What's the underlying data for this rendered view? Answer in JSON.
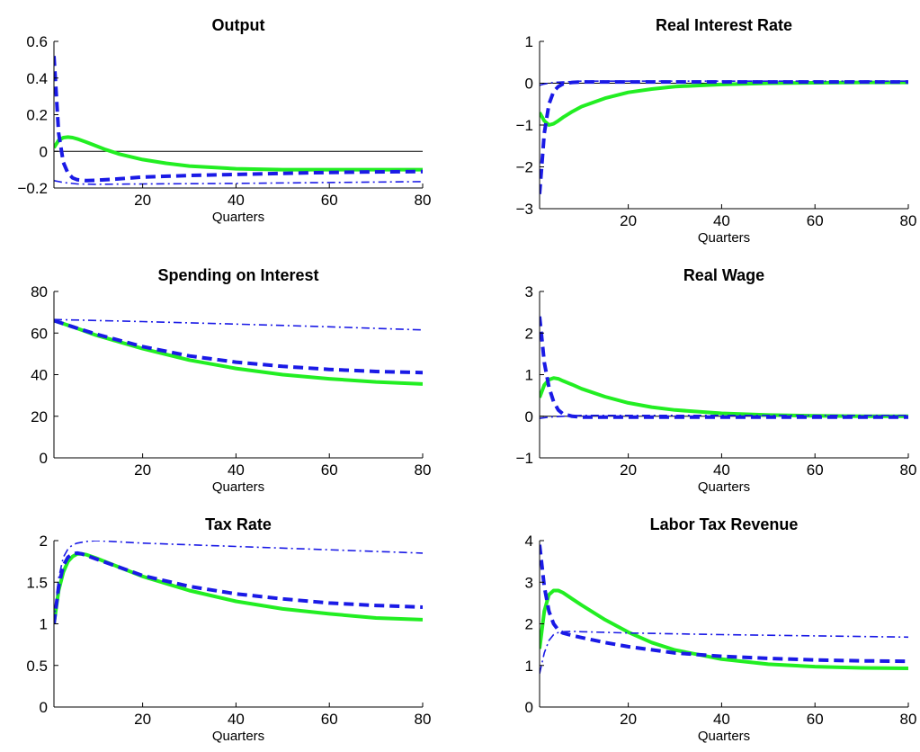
{
  "chart_data": [
    {
      "type": "line",
      "title": "Output",
      "xlabel": "Quarters",
      "ylabel": "",
      "xlim": [
        1,
        80
      ],
      "ylim": [
        -0.2,
        0.6
      ],
      "xticks": [
        20,
        40,
        60,
        80
      ],
      "xtick_labels": [
        "20",
        "40",
        "60",
        "80"
      ],
      "yticks": [
        -0.2,
        0,
        0.2,
        0.4,
        0.6
      ],
      "ytick_labels": [
        "−0.2",
        "0",
        "0.2",
        "0.4",
        "0.6"
      ],
      "zero_line": true,
      "series": [
        {
          "style": "solid",
          "color": "#22ee22",
          "x": [
            1,
            2,
            3,
            4,
            5,
            6,
            8,
            10,
            12,
            15,
            20,
            25,
            30,
            40,
            50,
            60,
            70,
            80
          ],
          "y": [
            0.02,
            0.06,
            0.075,
            0.078,
            0.075,
            0.068,
            0.05,
            0.03,
            0.01,
            -0.015,
            -0.045,
            -0.065,
            -0.08,
            -0.095,
            -0.1,
            -0.1,
            -0.1,
            -0.1
          ]
        },
        {
          "style": "dashed",
          "color": "#1a1ae6",
          "x": [
            1,
            2,
            3,
            4,
            5,
            6,
            8,
            10,
            15,
            20,
            30,
            40,
            50,
            60,
            70,
            80
          ],
          "y": [
            0.52,
            0.1,
            -0.06,
            -0.12,
            -0.145,
            -0.155,
            -0.16,
            -0.158,
            -0.15,
            -0.14,
            -0.132,
            -0.126,
            -0.12,
            -0.115,
            -0.112,
            -0.11
          ]
        },
        {
          "style": "dashdot",
          "color": "#1a1ae6",
          "x": [
            1,
            3,
            6,
            10,
            20,
            40,
            60,
            80
          ],
          "y": [
            -0.16,
            -0.17,
            -0.178,
            -0.18,
            -0.178,
            -0.175,
            -0.17,
            -0.165
          ]
        }
      ]
    },
    {
      "type": "line",
      "title": "Real Interest Rate",
      "xlabel": "Quarters",
      "ylabel": "",
      "xlim": [
        1,
        80
      ],
      "ylim": [
        -3,
        1
      ],
      "xticks": [
        20,
        40,
        60,
        80
      ],
      "xtick_labels": [
        "20",
        "40",
        "60",
        "80"
      ],
      "yticks": [
        -3,
        -2,
        -1,
        0,
        1
      ],
      "ytick_labels": [
        "−3",
        "−2",
        "−1",
        "0",
        "1"
      ],
      "zero_line": true,
      "series": [
        {
          "style": "solid",
          "color": "#22ee22",
          "x": [
            1,
            2,
            3,
            4,
            5,
            6,
            8,
            10,
            15,
            20,
            25,
            30,
            40,
            50,
            60,
            70,
            80
          ],
          "y": [
            -0.7,
            -0.9,
            -1.0,
            -0.97,
            -0.9,
            -0.82,
            -0.68,
            -0.56,
            -0.36,
            -0.22,
            -0.14,
            -0.08,
            -0.03,
            0,
            0.01,
            0.02,
            0.02
          ]
        },
        {
          "style": "dashed",
          "color": "#1a1ae6",
          "x": [
            1,
            2,
            3,
            4,
            5,
            6,
            8,
            10,
            15,
            20,
            40,
            60,
            80
          ],
          "y": [
            -2.65,
            -1.2,
            -0.5,
            -0.2,
            -0.08,
            -0.02,
            0.02,
            0.03,
            0.03,
            0.03,
            0.03,
            0.03,
            0.03
          ]
        },
        {
          "style": "dashdot",
          "color": "#1a1ae6",
          "x": [
            1,
            2,
            3,
            4,
            6,
            8,
            10,
            20,
            40,
            60,
            80
          ],
          "y": [
            -0.05,
            -0.02,
            0,
            0.02,
            0.03,
            0.04,
            0.05,
            0.05,
            0.05,
            0.05,
            0.05
          ]
        }
      ]
    },
    {
      "type": "line",
      "title": "Spending on Interest",
      "xlabel": "Quarters",
      "ylabel": "",
      "xlim": [
        1,
        80
      ],
      "ylim": [
        0,
        80
      ],
      "xticks": [
        20,
        40,
        60,
        80
      ],
      "xtick_labels": [
        "20",
        "40",
        "60",
        "80"
      ],
      "yticks": [
        0,
        20,
        40,
        60,
        80
      ],
      "ytick_labels": [
        "0",
        "20",
        "40",
        "60",
        "80"
      ],
      "zero_line": false,
      "series": [
        {
          "style": "solid",
          "color": "#22ee22",
          "x": [
            1,
            5,
            10,
            20,
            30,
            40,
            50,
            60,
            70,
            80
          ],
          "y": [
            66,
            63,
            59,
            52.5,
            47,
            43,
            40,
            38,
            36.5,
            35.5
          ]
        },
        {
          "style": "dashed",
          "color": "#1a1ae6",
          "x": [
            1,
            5,
            10,
            20,
            30,
            40,
            50,
            60,
            70,
            80
          ],
          "y": [
            66,
            63,
            59.5,
            53.5,
            49,
            46,
            44,
            42.5,
            41.5,
            41
          ]
        },
        {
          "style": "dashdot",
          "color": "#1a1ae6",
          "x": [
            1,
            20,
            40,
            60,
            80
          ],
          "y": [
            66.5,
            65.5,
            64.3,
            63,
            61.5
          ]
        }
      ]
    },
    {
      "type": "line",
      "title": "Real Wage",
      "xlabel": "Quarters",
      "ylabel": "",
      "xlim": [
        1,
        80
      ],
      "ylim": [
        -1,
        3
      ],
      "xticks": [
        20,
        40,
        60,
        80
      ],
      "xtick_labels": [
        "20",
        "40",
        "60",
        "80"
      ],
      "yticks": [
        -1,
        0,
        1,
        2,
        3
      ],
      "ytick_labels": [
        "−1",
        "0",
        "1",
        "2",
        "3"
      ],
      "zero_line": true,
      "series": [
        {
          "style": "solid",
          "color": "#22ee22",
          "x": [
            1,
            2,
            3,
            4,
            5,
            6,
            8,
            10,
            15,
            20,
            25,
            30,
            40,
            50,
            60,
            70,
            80
          ],
          "y": [
            0.45,
            0.75,
            0.88,
            0.92,
            0.9,
            0.85,
            0.76,
            0.66,
            0.47,
            0.32,
            0.22,
            0.15,
            0.07,
            0.03,
            0.01,
            0,
            0
          ]
        },
        {
          "style": "dashed",
          "color": "#1a1ae6",
          "x": [
            1,
            2,
            3,
            4,
            5,
            6,
            8,
            10,
            15,
            20,
            40,
            60,
            80
          ],
          "y": [
            2.4,
            1.3,
            0.7,
            0.35,
            0.15,
            0.06,
            0,
            -0.02,
            -0.02,
            -0.02,
            -0.02,
            -0.02,
            -0.02
          ]
        },
        {
          "style": "dashdot",
          "color": "#1a1ae6",
          "x": [
            1,
            3,
            6,
            10,
            20,
            40,
            60,
            80
          ],
          "y": [
            -0.05,
            -0.02,
            0,
            0.02,
            0.02,
            0.02,
            0.02,
            0.02
          ]
        }
      ]
    },
    {
      "type": "line",
      "title": "Tax Rate",
      "xlabel": "Quarters",
      "ylabel": "",
      "xlim": [
        1,
        80
      ],
      "ylim": [
        0,
        2
      ],
      "xticks": [
        20,
        40,
        60,
        80
      ],
      "xtick_labels": [
        "20",
        "40",
        "60",
        "80"
      ],
      "yticks": [
        0,
        0.5,
        1,
        1.5,
        2
      ],
      "ytick_labels": [
        "0",
        "0.5",
        "1",
        "1.5",
        "2"
      ],
      "zero_line": false,
      "series": [
        {
          "style": "solid",
          "color": "#22ee22",
          "x": [
            1,
            2,
            3,
            4,
            5,
            6,
            7,
            8,
            10,
            15,
            20,
            30,
            40,
            50,
            60,
            70,
            80
          ],
          "y": [
            1.0,
            1.4,
            1.62,
            1.75,
            1.81,
            1.84,
            1.84,
            1.83,
            1.79,
            1.68,
            1.57,
            1.4,
            1.27,
            1.18,
            1.12,
            1.07,
            1.05
          ]
        },
        {
          "style": "dashed",
          "color": "#1a1ae6",
          "x": [
            1,
            2,
            3,
            4,
            5,
            6,
            7,
            8,
            10,
            15,
            20,
            30,
            40,
            50,
            60,
            70,
            80
          ],
          "y": [
            1.0,
            1.45,
            1.7,
            1.8,
            1.84,
            1.85,
            1.84,
            1.82,
            1.78,
            1.68,
            1.58,
            1.45,
            1.36,
            1.3,
            1.25,
            1.22,
            1.2
          ]
        },
        {
          "style": "dashdot",
          "color": "#1a1ae6",
          "x": [
            1,
            2,
            3,
            4,
            5,
            6,
            8,
            10,
            20,
            40,
            60,
            80
          ],
          "y": [
            1.0,
            1.55,
            1.8,
            1.9,
            1.95,
            1.97,
            1.99,
            2.0,
            1.97,
            1.93,
            1.89,
            1.85
          ]
        }
      ]
    },
    {
      "type": "line",
      "title": "Labor Tax Revenue",
      "xlabel": "Quarters",
      "ylabel": "",
      "xlim": [
        1,
        80
      ],
      "ylim": [
        0,
        4
      ],
      "xticks": [
        20,
        40,
        60,
        80
      ],
      "xtick_labels": [
        "20",
        "40",
        "60",
        "80"
      ],
      "yticks": [
        0,
        1,
        2,
        3,
        4
      ],
      "ytick_labels": [
        "0",
        "1",
        "2",
        "3",
        "4"
      ],
      "zero_line": false,
      "series": [
        {
          "style": "solid",
          "color": "#22ee22",
          "x": [
            1,
            2,
            3,
            4,
            5,
            6,
            8,
            10,
            15,
            20,
            25,
            30,
            40,
            50,
            60,
            70,
            80
          ],
          "y": [
            1.4,
            2.3,
            2.7,
            2.8,
            2.8,
            2.75,
            2.6,
            2.45,
            2.1,
            1.8,
            1.55,
            1.37,
            1.15,
            1.03,
            0.97,
            0.94,
            0.93
          ]
        },
        {
          "style": "dashed",
          "color": "#1a1ae6",
          "x": [
            1,
            2,
            3,
            4,
            5,
            6,
            8,
            10,
            15,
            20,
            30,
            40,
            50,
            60,
            70,
            80
          ],
          "y": [
            3.9,
            2.9,
            2.3,
            2.0,
            1.85,
            1.78,
            1.72,
            1.67,
            1.55,
            1.45,
            1.3,
            1.22,
            1.17,
            1.13,
            1.11,
            1.1
          ]
        },
        {
          "style": "dashdot",
          "color": "#1a1ae6",
          "x": [
            1,
            2,
            3,
            4,
            5,
            6,
            8,
            10,
            20,
            40,
            60,
            80
          ],
          "y": [
            0.8,
            1.3,
            1.6,
            1.74,
            1.79,
            1.81,
            1.82,
            1.81,
            1.78,
            1.74,
            1.71,
            1.68
          ]
        }
      ]
    }
  ]
}
